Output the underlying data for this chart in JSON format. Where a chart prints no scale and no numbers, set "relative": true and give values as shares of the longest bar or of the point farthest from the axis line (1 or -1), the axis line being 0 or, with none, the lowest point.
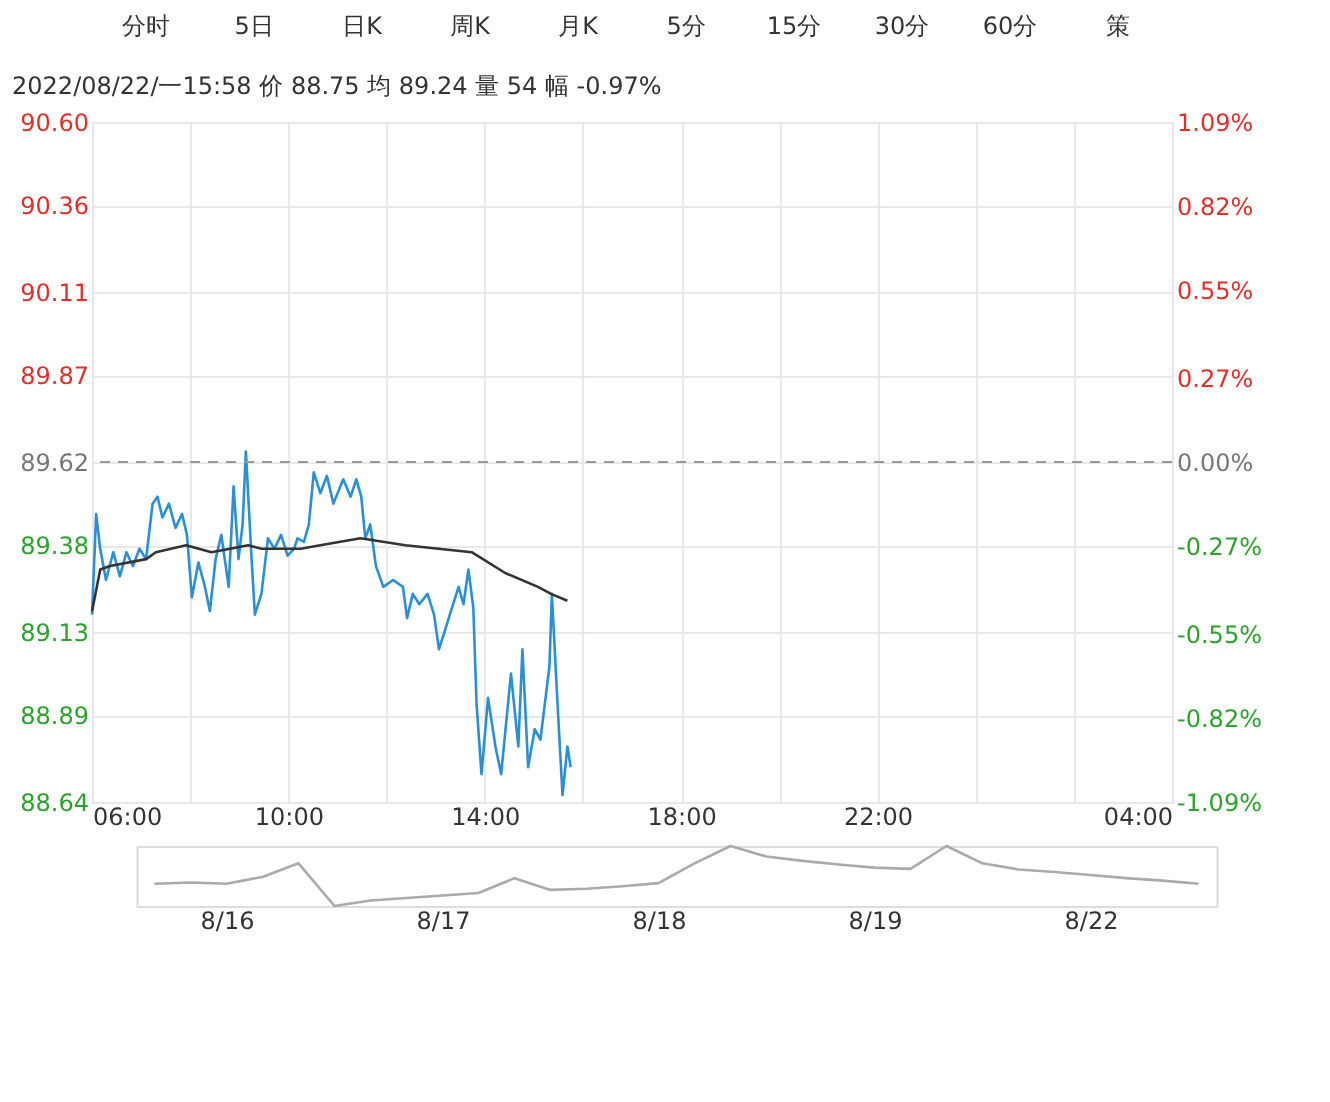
{
  "chart_data": [
    {
      "type": "line",
      "annotations": [
        "分时",
        "5日",
        "日K",
        "周K",
        "月K",
        "5分",
        "15分",
        "30分",
        "60分",
        "策",
        "2022/08/22/一15:58  价 88.75  均 89.24  量 54  幅 -0.97%"
      ],
      "xlim": [
        "2022-08-22T06:00",
        "2022-08-23T04:00"
      ],
      "xticks": [
        {
          "value": "2022-08-22T06:00",
          "label": "06:00"
        },
        {
          "value": "2022-08-22T08:00",
          "label": null
        },
        {
          "value": "2022-08-22T10:00",
          "label": "10:00"
        },
        {
          "value": "2022-08-22T12:00",
          "label": null
        },
        {
          "value": "2022-08-22T14:00",
          "label": "14:00"
        },
        {
          "value": "2022-08-22T16:00",
          "label": null
        },
        {
          "value": "2022-08-22T18:00",
          "label": "18:00"
        },
        {
          "value": "2022-08-22T20:00",
          "label": null
        },
        {
          "value": "2022-08-22T22:00",
          "label": "22:00"
        },
        {
          "value": "2022-08-23T00:00",
          "label": null
        },
        {
          "value": "2022-08-23T02:00",
          "label": null
        },
        {
          "value": "2022-08-23T04:00",
          "label": "04:00"
        }
      ],
      "ylim": [
        88.64,
        90.6
      ],
      "yticks": [
        88.64,
        88.89,
        89.13,
        89.38,
        {
          "value": 89.62,
          "label": "89.62"
        },
        89.87,
        90.11,
        90.36,
        {
          "value": 90.6,
          "label": "90.60"
        }
      ],
      "y2lim": [
        -1.09,
        1.09
      ],
      "y2ticks": [
        {
          "value": -1.09,
          "label": "-1.09%"
        },
        {
          "value": -0.82,
          "label": "-0.82%"
        },
        {
          "value": -0.55,
          "label": "-0.55%"
        },
        {
          "value": -0.27,
          "label": "-0.27%"
        },
        {
          "value": 0,
          "label": "0.00%"
        },
        {
          "value": 0.27,
          "label": "0.27%"
        },
        {
          "value": 0.55,
          "label": "0.55%"
        },
        {
          "value": 0.82,
          "label": "0.82%"
        },
        {
          "value": 1.09,
          "label": "1.09%"
        }
      ],
      "grid": true,
      "ref_lines": [
        {
          "axis": "y2",
          "value": 0,
          "label": null,
          "color": "#999999",
          "line_style": "dashed"
        }
      ],
      "series": [
        {
          "color": "#2b8fd6",
          "x": [
            "2022-08-22T06:00",
            "2022-08-22T06:05",
            "2022-08-22T06:10",
            "2022-08-22T06:17",
            "2022-08-22T06:26",
            "2022-08-22T06:34",
            "2022-08-22T06:42",
            "2022-08-22T06:50",
            "2022-08-22T06:58",
            "2022-08-22T07:06",
            "2022-08-22T07:14",
            "2022-08-22T07:20",
            "2022-08-22T07:26",
            "2022-08-22T07:34",
            "2022-08-22T07:42",
            "2022-08-22T07:50",
            "2022-08-22T07:56",
            "2022-08-22T08:02",
            "2022-08-22T08:10",
            "2022-08-22T08:18",
            "2022-08-22T08:24",
            "2022-08-22T08:31",
            "2022-08-22T08:38",
            "2022-08-22T08:47",
            "2022-08-22T08:53",
            "2022-08-22T08:59",
            "2022-08-22T09:04",
            "2022-08-22T09:08",
            "2022-08-22T09:15",
            "2022-08-22T09:19",
            "2022-08-22T09:27",
            "2022-08-22T09:35",
            "2022-08-22T09:43",
            "2022-08-22T09:51",
            "2022-08-22T09:59",
            "2022-08-22T10:07",
            "2022-08-22T10:11",
            "2022-08-22T10:19",
            "2022-08-22T10:25",
            "2022-08-22T10:31",
            "2022-08-22T10:39",
            "2022-08-22T10:47",
            "2022-08-22T10:55",
            "2022-08-22T11:07",
            "2022-08-22T11:16",
            "2022-08-22T11:23",
            "2022-08-22T11:29",
            "2022-08-22T11:34",
            "2022-08-22T11:40",
            "2022-08-22T11:47",
            "2022-08-22T11:56",
            "2022-08-22T12:08",
            "2022-08-22T12:20",
            "2022-08-22T12:25",
            "2022-08-22T12:32",
            "2022-08-22T12:40",
            "2022-08-22T12:50",
            "2022-08-22T12:58",
            "2022-08-22T13:04",
            "2022-08-22T13:12",
            "2022-08-22T13:20",
            "2022-08-22T13:28",
            "2022-08-22T13:34",
            "2022-08-22T13:40",
            "2022-08-22T13:46",
            "2022-08-22T13:50",
            "2022-08-22T13:56",
            "2022-08-22T14:04",
            "2022-08-22T14:13",
            "2022-08-22T14:20",
            "2022-08-22T14:32",
            "2022-08-22T14:41",
            "2022-08-22T14:46",
            "2022-08-22T14:53",
            "2022-08-22T15:01",
            "2022-08-22T15:08",
            "2022-08-22T15:19",
            "2022-08-22T15:22",
            "2022-08-22T15:29",
            "2022-08-22T15:35",
            "2022-08-22T15:41",
            "2022-08-22T15:45"
          ],
          "values": [
            89.18,
            89.47,
            89.37,
            89.28,
            89.36,
            89.29,
            89.36,
            89.32,
            89.37,
            89.34,
            89.5,
            89.52,
            89.46,
            89.5,
            89.43,
            89.47,
            89.41,
            89.23,
            89.33,
            89.26,
            89.19,
            89.34,
            89.41,
            89.26,
            89.55,
            89.34,
            89.44,
            89.65,
            89.34,
            89.18,
            89.24,
            89.4,
            89.37,
            89.41,
            89.35,
            89.37,
            89.4,
            89.39,
            89.44,
            89.59,
            89.53,
            89.58,
            89.5,
            89.57,
            89.52,
            89.57,
            89.52,
            89.4,
            89.44,
            89.32,
            89.26,
            89.28,
            89.26,
            89.17,
            89.24,
            89.21,
            89.24,
            89.18,
            89.08,
            89.14,
            89.2,
            89.26,
            89.21,
            89.31,
            89.2,
            88.92,
            88.72,
            88.94,
            88.8,
            88.72,
            89.01,
            88.8,
            89.08,
            88.74,
            88.85,
            88.82,
            89.03,
            89.24,
            88.92,
            88.66,
            88.8,
            88.74
          ]
        },
        {
          "color": "#333333",
          "x": [
            "2022-08-22T06:00",
            "2022-08-22T06:10",
            "2022-08-22T06:22",
            "2022-08-22T07:06",
            "2022-08-22T07:18",
            "2022-08-22T07:55",
            "2022-08-22T08:26",
            "2022-08-22T09:11",
            "2022-08-22T09:27",
            "2022-08-22T10:15",
            "2022-08-22T10:39",
            "2022-08-22T11:28",
            "2022-08-22T12:23",
            "2022-08-22T13:44",
            "2022-08-22T14:25",
            "2022-08-22T15:05",
            "2022-08-22T15:21",
            "2022-08-22T15:41"
          ],
          "values": [
            89.19,
            89.31,
            89.32,
            89.34,
            89.36,
            89.38,
            89.36,
            89.38,
            89.37,
            89.37,
            89.38,
            89.4,
            89.38,
            89.36,
            89.3,
            89.26,
            89.24,
            89.22
          ]
        }
      ]
    },
    {
      "type": "line",
      "relative": true,
      "categories": [
        null,
        null,
        "8/16",
        null,
        null,
        null,
        null,
        null,
        "8/17",
        null,
        null,
        null,
        null,
        null,
        "8/18",
        null,
        null,
        null,
        null,
        null,
        "8/19",
        null,
        null,
        null,
        null,
        null,
        "8/22",
        null,
        null,
        null
      ],
      "series": [
        {
          "color": "#aaaaaa",
          "values": [
            0.39,
            0.41,
            0.39,
            0.5,
            0.72,
            0.03,
            0.12,
            0.16,
            0.2,
            0.24,
            0.48,
            0.29,
            0.31,
            0.35,
            0.4,
            0.72,
            1,
            0.83,
            0.76,
            0.7,
            0.65,
            0.63,
            1,
            0.72,
            0.62,
            0.58,
            0.53,
            0.48,
            0.44,
            0.39
          ]
        }
      ]
    }
  ]
}
